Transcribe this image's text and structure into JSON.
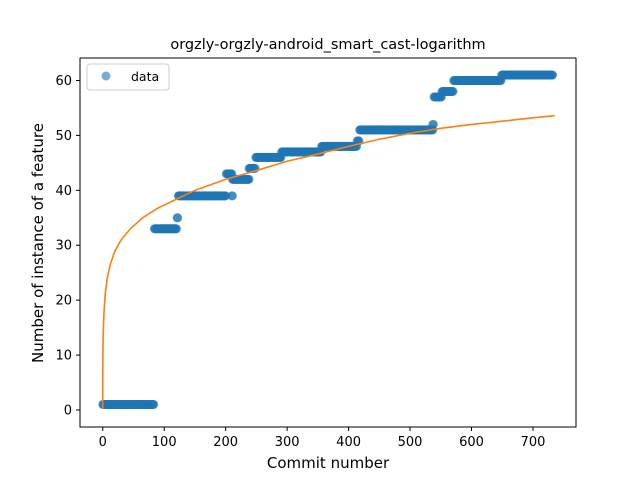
{
  "chart_data": {
    "type": "scatter",
    "title": "orgzly-orgzly-android_smart_cast-logarithm",
    "xlabel": "Commit number",
    "ylabel": "Number of instance of a feature",
    "xlim": [
      -37,
      770
    ],
    "ylim": [
      -3.1,
      64.1
    ],
    "xticks": [
      0,
      100,
      200,
      300,
      400,
      500,
      600,
      700
    ],
    "yticks": [
      0,
      10,
      20,
      30,
      40,
      50,
      60
    ],
    "grid": false,
    "legend": {
      "position": "top-left",
      "entries": [
        "data"
      ]
    },
    "series": [
      {
        "name": "data",
        "kind": "markers",
        "color": "#1f77b4",
        "segments": [
          {
            "x": [
              0,
              83
            ],
            "y": 1
          },
          {
            "x": [
              84,
              120
            ],
            "y": 33
          },
          {
            "x": [
              121,
              122
            ],
            "y": 35
          },
          {
            "x": [
              123,
              200
            ],
            "y": 39
          },
          {
            "x": [
              201,
              210
            ],
            "y": 43
          },
          {
            "x": [
              210,
              211
            ],
            "y": 39
          },
          {
            "x": [
              211,
              238
            ],
            "y": 42
          },
          {
            "x": [
              238,
              248
            ],
            "y": 44
          },
          {
            "x": [
              249,
              290
            ],
            "y": 46
          },
          {
            "x": [
              291,
              355
            ],
            "y": 47
          },
          {
            "x": [
              356,
              413
            ],
            "y": 48
          },
          {
            "x": [
              414,
              417
            ],
            "y": 49
          },
          {
            "x": [
              418,
              537
            ],
            "y": 51
          },
          {
            "x": [
              537,
              538
            ],
            "y": 52
          },
          {
            "x": [
              539,
              551
            ],
            "y": 57
          },
          {
            "x": [
              552,
              570
            ],
            "y": 58
          },
          {
            "x": [
              571,
              648
            ],
            "y": 60
          },
          {
            "x": [
              649,
              732
            ],
            "y": 61
          }
        ]
      },
      {
        "name": "",
        "kind": "line",
        "color": "#ff7f0e",
        "points": [
          [
            0,
            0.2
          ],
          [
            0.1,
            7.5
          ],
          [
            0.4,
            11.5
          ],
          [
            1,
            14.5
          ],
          [
            2,
            17.7
          ],
          [
            4,
            21.0
          ],
          [
            7,
            23.8
          ],
          [
            12,
            26.4
          ],
          [
            20,
            29.0
          ],
          [
            30,
            31.0
          ],
          [
            45,
            33.0
          ],
          [
            65,
            35.0
          ],
          [
            90,
            36.8
          ],
          [
            120,
            38.4
          ],
          [
            150,
            40.0
          ],
          [
            200,
            42.0
          ],
          [
            250,
            43.6
          ],
          [
            300,
            45.3
          ],
          [
            350,
            46.6
          ],
          [
            400,
            48.0
          ],
          [
            450,
            49.3
          ],
          [
            500,
            50.4
          ],
          [
            550,
            51.3
          ],
          [
            600,
            52.0
          ],
          [
            650,
            52.6
          ],
          [
            700,
            53.2
          ],
          [
            735,
            53.6
          ]
        ]
      }
    ]
  }
}
